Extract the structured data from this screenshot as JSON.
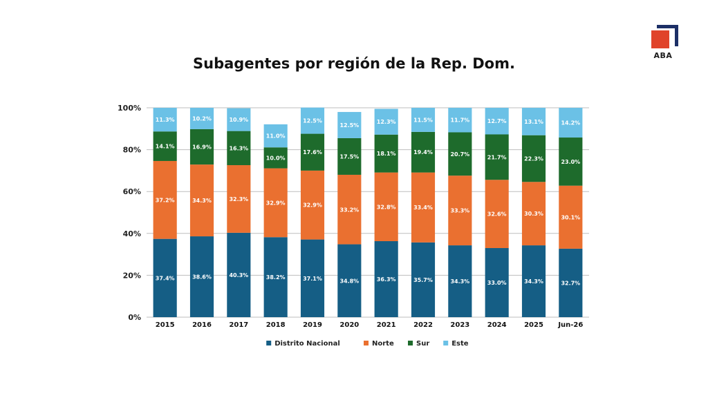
{
  "brand": {
    "logo_text": "ABA",
    "colors": {
      "red": "#e0432a",
      "navy": "#1c2f66"
    }
  },
  "chart_data": {
    "type": "bar",
    "stacked": true,
    "title": "Subagentes por región de la Rep. Dom.",
    "categories": [
      "2015",
      "2016",
      "2017",
      "2018",
      "2019",
      "2020",
      "2021",
      "2022",
      "2023",
      "2024",
      "2025",
      "Jun-26"
    ],
    "series": [
      {
        "name": "Distrito Nacional",
        "color": "#155e85",
        "values": [
          37.4,
          38.6,
          40.3,
          38.2,
          37.1,
          34.8,
          36.3,
          35.7,
          34.3,
          33.0,
          34.3,
          32.7
        ],
        "labels": [
          "37.4%",
          "38.6%",
          "40.3%",
          "38.2%",
          "37.1%",
          "34.8%",
          "36.3%",
          "35.7%",
          "34.3%",
          "33.0%",
          "34.3%",
          "32.7%"
        ]
      },
      {
        "name": "Norte",
        "color": "#ea7030",
        "values": [
          37.2,
          34.3,
          32.3,
          32.9,
          32.9,
          33.2,
          32.8,
          33.4,
          33.3,
          32.6,
          30.3,
          30.1
        ],
        "labels": [
          "37.2%",
          "34.3%",
          "32.3%",
          "32.9%",
          "32.9%",
          "33.2%",
          "32.8%",
          "33.4%",
          "33.3%",
          "32.6%",
          "30.3%",
          "30.1%"
        ]
      },
      {
        "name": "Sur",
        "color": "#1e6b2c",
        "values": [
          14.1,
          16.9,
          16.3,
          10.0,
          17.6,
          17.5,
          18.1,
          19.4,
          20.7,
          21.7,
          22.3,
          23.0
        ],
        "labels": [
          "14.1%",
          "16.9%",
          "16.3%",
          "10.0%",
          "17.6%",
          "17.5%",
          "18.1%",
          "19.4%",
          "20.7%",
          "21.7%",
          "22.3%",
          "23.0%"
        ]
      },
      {
        "name": "Este",
        "color": "#6bc1e6",
        "values": [
          11.3,
          10.2,
          10.9,
          11.0,
          12.5,
          12.5,
          12.3,
          11.5,
          11.7,
          12.7,
          13.1,
          14.2
        ],
        "labels": [
          "11.3%",
          "10.2%",
          "10.9%",
          "11.0%",
          "12.5%",
          "12.5%",
          "12.3%",
          "11.5%",
          "11.7%",
          "12.7%",
          "13.1%",
          "14.2%"
        ]
      }
    ],
    "ylim": [
      0,
      100
    ],
    "yticks": [
      0,
      20,
      40,
      60,
      80,
      100
    ],
    "ytick_labels": [
      "0%",
      "20%",
      "40%",
      "60%",
      "80%",
      "100%"
    ],
    "grid": true,
    "legend_position": "bottom-center"
  }
}
